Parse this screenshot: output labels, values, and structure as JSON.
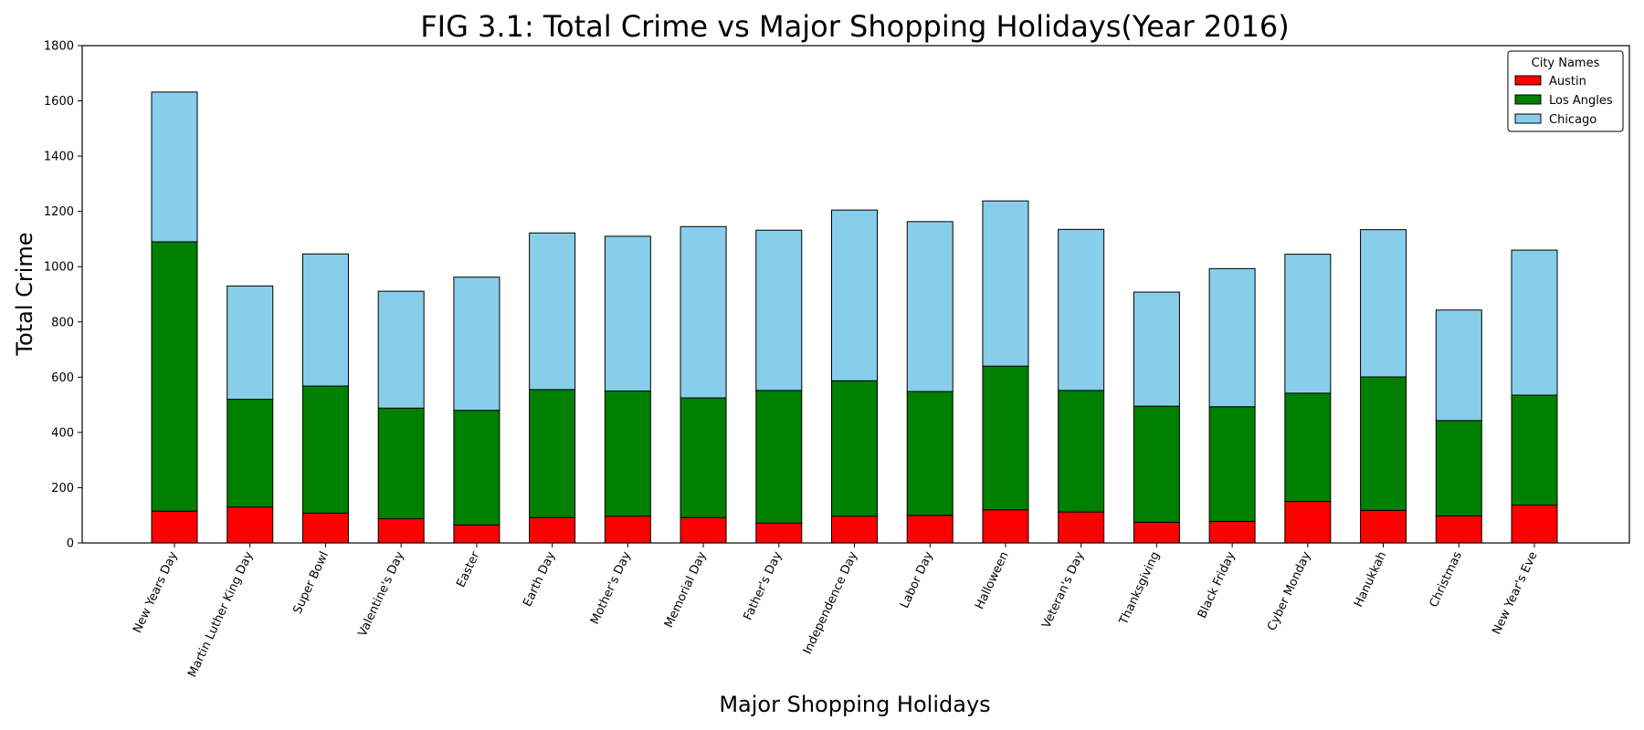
{
  "chart_data": {
    "type": "bar",
    "stacked": true,
    "title": "FIG 3.1: Total Crime vs Major Shopping Holidays(Year 2016)",
    "xlabel": "Major Shopping Holidays",
    "ylabel": "Total Crime",
    "ylim": [
      0,
      1800
    ],
    "yticks": [
      0,
      200,
      400,
      600,
      800,
      1000,
      1200,
      1400,
      1600,
      1800
    ],
    "grid": false,
    "legend": {
      "title": "City Names",
      "position": "top-right",
      "entries": [
        "Austin",
        "Los Angles",
        "Chicago"
      ]
    },
    "categories": [
      "New Years Day",
      "Martin Luther King Day",
      "Super Bowl",
      "Valentine's Day",
      "Easter",
      "Earth Day",
      "Mother's Day",
      "Memorial Day",
      "Father's Day",
      "Independence Day",
      "Labor Day",
      "Halloween",
      "Veteran's Day",
      "Thanksgiving",
      "Black Friday",
      "Cyber Monday",
      "Hanukkah",
      "Christmas",
      "New Year's Eve"
    ],
    "series": [
      {
        "name": "Austin",
        "color": "#ff0000",
        "values": [
          115,
          130,
          108,
          88,
          65,
          92,
          97,
          92,
          72,
          97,
          100,
          120,
          112,
          75,
          78,
          150,
          118,
          98,
          137
        ]
      },
      {
        "name": "Los Angles",
        "color": "#008000",
        "values": [
          975,
          390,
          460,
          400,
          415,
          463,
          453,
          433,
          480,
          490,
          448,
          520,
          440,
          420,
          415,
          392,
          483,
          345,
          398
        ]
      },
      {
        "name": "Chicago",
        "color": "#87ceeb",
        "values": [
          542,
          410,
          478,
          423,
          482,
          567,
          560,
          620,
          580,
          618,
          615,
          598,
          583,
          413,
          500,
          503,
          533,
          400,
          525
        ]
      }
    ]
  }
}
